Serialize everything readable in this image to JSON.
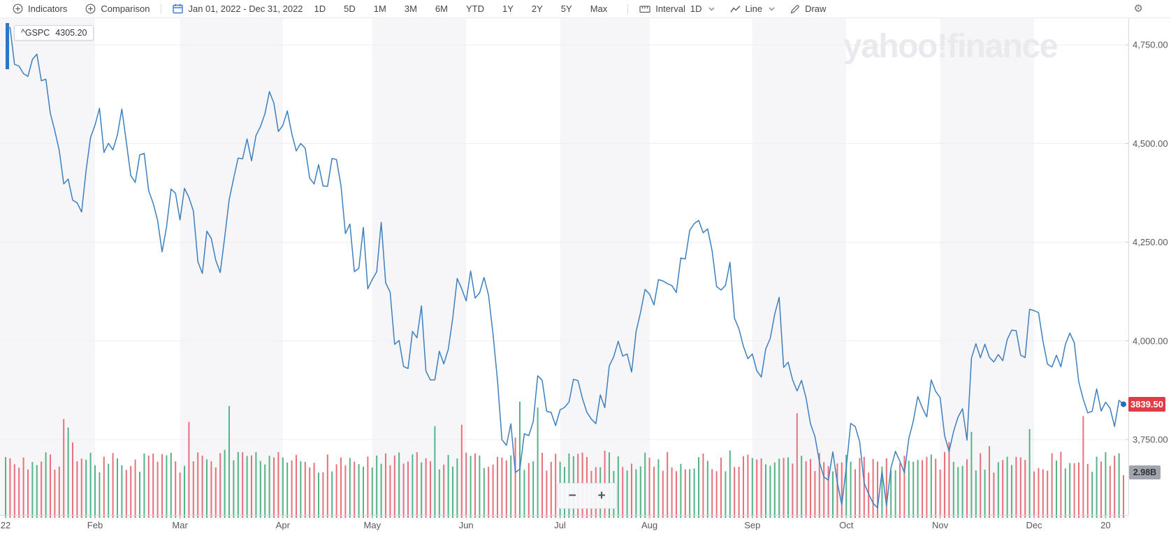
{
  "toolbar": {
    "indicators": "Indicators",
    "comparison": "Comparison",
    "date_range": "Jan 01, 2022 - Dec 31, 2022",
    "ranges": [
      "1D",
      "5D",
      "1M",
      "3M",
      "6M",
      "YTD",
      "1Y",
      "2Y",
      "5Y",
      "Max"
    ],
    "interval_label": "Interval",
    "interval_value": "1D",
    "chart_type_value": "Line",
    "draw_label": "Draw"
  },
  "legend_chip": {
    "symbol": "^GSPC",
    "value": "4305.20"
  },
  "watermark": "yahoo!finance",
  "badges": {
    "last_price": "3839.50",
    "volume": "2.98B"
  },
  "zoom_controls": {
    "out": "−",
    "in": "+"
  },
  "colors": {
    "line": "#3c80bf",
    "end_dot": "#1e6dc5",
    "price_badge_bg": "#e03c43",
    "volume_up": "#55b487",
    "volume_down": "#e8707b",
    "month_band": "#f6f6f8",
    "grid": "#ededf0",
    "axis_line": "#d7dadd",
    "tick": "#c6c9ce",
    "label": "#55585e",
    "watermark": "#e9eaed",
    "volume_badge_bg": "#a0a4ac",
    "start_marker": "#2a77c9"
  },
  "chart_data": {
    "type": "line",
    "title": "^GSPC daily close, Jan 01 2022 - Dec 31 2022",
    "x_unit": "trading-day index (0 = Jan 3 2022)",
    "y_ticks": [
      "4,750.00",
      "4,500.00",
      "4,250.00",
      "4,000.00",
      "3,750.00"
    ],
    "y_tick_values": [
      4750,
      4500,
      4250,
      4000,
      3750
    ],
    "ylim": [
      3560,
      4810
    ],
    "x_ticks": [
      {
        "label": "22",
        "d": 0
      },
      {
        "label": "Feb",
        "d": 20
      },
      {
        "label": "Mar",
        "d": 39
      },
      {
        "label": "Apr",
        "d": 62
      },
      {
        "label": "May",
        "d": 82
      },
      {
        "label": "Jun",
        "d": 103
      },
      {
        "label": "Jul",
        "d": 124
      },
      {
        "label": "Aug",
        "d": 144
      },
      {
        "label": "Sep",
        "d": 167
      },
      {
        "label": "Oct",
        "d": 188
      },
      {
        "label": "Nov",
        "d": 209
      },
      {
        "label": "Dec",
        "d": 230
      },
      {
        "label": "20",
        "d": 246
      }
    ],
    "month_start_days": [
      0,
      20,
      39,
      62,
      82,
      103,
      124,
      144,
      167,
      188,
      209,
      230,
      251
    ],
    "shaded_months_note": "alternating bands, Jan/Mar/May/Jul/Sep/Nov shaded",
    "grid": true,
    "last_close": 3839.5,
    "series": [
      {
        "name": "^GSPC close",
        "points": [
          [
            0,
            4796.6
          ],
          [
            1,
            4793.5
          ],
          [
            2,
            4700.6
          ],
          [
            3,
            4696.1
          ],
          [
            4,
            4677.0
          ],
          [
            5,
            4670.3
          ],
          [
            6,
            4713.1
          ],
          [
            7,
            4726.4
          ],
          [
            8,
            4659.0
          ],
          [
            9,
            4663.0
          ],
          [
            10,
            4577.1
          ],
          [
            11,
            4532.8
          ],
          [
            12,
            4482.7
          ],
          [
            13,
            4397.9
          ],
          [
            14,
            4410.1
          ],
          [
            15,
            4356.5
          ],
          [
            16,
            4349.9
          ],
          [
            17,
            4326.5
          ],
          [
            18,
            4431.9
          ],
          [
            19,
            4515.6
          ],
          [
            20,
            4546.5
          ],
          [
            21,
            4589.4
          ],
          [
            22,
            4477.4
          ],
          [
            23,
            4500.5
          ],
          [
            24,
            4483.9
          ],
          [
            25,
            4521.5
          ],
          [
            26,
            4587.2
          ],
          [
            27,
            4504.1
          ],
          [
            28,
            4418.6
          ],
          [
            29,
            4401.7
          ],
          [
            30,
            4471.1
          ],
          [
            31,
            4475.0
          ],
          [
            32,
            4380.3
          ],
          [
            33,
            4348.9
          ],
          [
            34,
            4304.8
          ],
          [
            35,
            4225.5
          ],
          [
            36,
            4288.7
          ],
          [
            37,
            4384.7
          ],
          [
            38,
            4373.9
          ],
          [
            39,
            4306.3
          ],
          [
            40,
            4386.5
          ],
          [
            41,
            4363.5
          ],
          [
            42,
            4328.9
          ],
          [
            43,
            4201.1
          ],
          [
            44,
            4170.7
          ],
          [
            45,
            4277.9
          ],
          [
            46,
            4259.5
          ],
          [
            47,
            4204.3
          ],
          [
            48,
            4173.1
          ],
          [
            49,
            4262.5
          ],
          [
            50,
            4357.9
          ],
          [
            51,
            4411.7
          ],
          [
            52,
            4463.1
          ],
          [
            53,
            4461.2
          ],
          [
            54,
            4511.6
          ],
          [
            55,
            4456.2
          ],
          [
            56,
            4520.2
          ],
          [
            57,
            4543.1
          ],
          [
            58,
            4575.5
          ],
          [
            59,
            4631.6
          ],
          [
            60,
            4602.5
          ],
          [
            61,
            4530.4
          ],
          [
            62,
            4545.9
          ],
          [
            63,
            4582.6
          ],
          [
            64,
            4525.1
          ],
          [
            65,
            4481.2
          ],
          [
            66,
            4500.2
          ],
          [
            67,
            4488.3
          ],
          [
            68,
            4412.5
          ],
          [
            69,
            4397.5
          ],
          [
            70,
            4446.6
          ],
          [
            71,
            4392.6
          ],
          [
            72,
            4391.7
          ],
          [
            73,
            4462.2
          ],
          [
            74,
            4459.5
          ],
          [
            75,
            4393.7
          ],
          [
            76,
            4271.8
          ],
          [
            77,
            4296.1
          ],
          [
            78,
            4175.2
          ],
          [
            79,
            4183.9
          ],
          [
            80,
            4287.5
          ],
          [
            81,
            4131.9
          ],
          [
            82,
            4155.4
          ],
          [
            83,
            4175.5
          ],
          [
            84,
            4300.2
          ],
          [
            85,
            4147.0
          ],
          [
            86,
            4123.3
          ],
          [
            87,
            3991.2
          ],
          [
            88,
            4001.0
          ],
          [
            89,
            3935.2
          ],
          [
            90,
            3930.1
          ],
          [
            91,
            4023.9
          ],
          [
            92,
            4008.0
          ],
          [
            93,
            4088.9
          ],
          [
            94,
            3923.7
          ],
          [
            95,
            3900.8
          ],
          [
            96,
            3901.4
          ],
          [
            97,
            3973.8
          ],
          [
            98,
            3941.5
          ],
          [
            99,
            3978.7
          ],
          [
            100,
            4057.8
          ],
          [
            101,
            4158.2
          ],
          [
            102,
            4132.2
          ],
          [
            103,
            4101.2
          ],
          [
            104,
            4176.8
          ],
          [
            105,
            4108.5
          ],
          [
            106,
            4121.4
          ],
          [
            107,
            4160.7
          ],
          [
            108,
            4115.8
          ],
          [
            109,
            4017.8
          ],
          [
            110,
            3900.9
          ],
          [
            111,
            3749.6
          ],
          [
            112,
            3735.5
          ],
          [
            113,
            3790.0
          ],
          [
            114,
            3666.8
          ],
          [
            115,
            3674.8
          ],
          [
            116,
            3764.8
          ],
          [
            117,
            3760.0
          ],
          [
            118,
            3795.7
          ],
          [
            119,
            3911.7
          ],
          [
            120,
            3900.1
          ],
          [
            121,
            3821.6
          ],
          [
            122,
            3818.8
          ],
          [
            123,
            3785.4
          ],
          [
            124,
            3825.3
          ],
          [
            125,
            3831.4
          ],
          [
            126,
            3845.1
          ],
          [
            127,
            3902.6
          ],
          [
            128,
            3899.4
          ],
          [
            129,
            3854.4
          ],
          [
            130,
            3818.8
          ],
          [
            131,
            3801.8
          ],
          [
            132,
            3790.4
          ],
          [
            133,
            3863.2
          ],
          [
            134,
            3830.8
          ],
          [
            135,
            3936.7
          ],
          [
            136,
            3959.9
          ],
          [
            137,
            3998.9
          ],
          [
            138,
            3961.6
          ],
          [
            139,
            3966.8
          ],
          [
            140,
            3921.1
          ],
          [
            141,
            4023.6
          ],
          [
            142,
            4072.4
          ],
          [
            143,
            4130.3
          ],
          [
            144,
            4118.6
          ],
          [
            145,
            4091.2
          ],
          [
            146,
            4155.2
          ],
          [
            147,
            4151.9
          ],
          [
            148,
            4145.2
          ],
          [
            149,
            4140.1
          ],
          [
            150,
            4122.5
          ],
          [
            151,
            4210.2
          ],
          [
            152,
            4207.3
          ],
          [
            153,
            4280.2
          ],
          [
            154,
            4297.1
          ],
          [
            155,
            4305.2
          ],
          [
            156,
            4274.0
          ],
          [
            157,
            4283.7
          ],
          [
            158,
            4228.5
          ],
          [
            159,
            4138.0
          ],
          [
            160,
            4128.7
          ],
          [
            161,
            4140.8
          ],
          [
            162,
            4199.1
          ],
          [
            163,
            4057.7
          ],
          [
            164,
            4030.6
          ],
          [
            165,
            3986.2
          ],
          [
            166,
            3955.0
          ],
          [
            167,
            3966.9
          ],
          [
            168,
            3924.3
          ],
          [
            169,
            3908.2
          ],
          [
            170,
            3979.9
          ],
          [
            171,
            4006.2
          ],
          [
            172,
            4067.4
          ],
          [
            173,
            4110.4
          ],
          [
            174,
            3932.7
          ],
          [
            175,
            3946.0
          ],
          [
            176,
            3901.4
          ],
          [
            177,
            3873.3
          ],
          [
            178,
            3899.9
          ],
          [
            179,
            3855.9
          ],
          [
            180,
            3789.9
          ],
          [
            181,
            3758.0
          ],
          [
            182,
            3693.2
          ],
          [
            183,
            3655.0
          ],
          [
            184,
            3647.3
          ],
          [
            185,
            3719.0
          ],
          [
            186,
            3640.5
          ],
          [
            187,
            3585.6
          ],
          [
            188,
            3678.4
          ],
          [
            189,
            3790.9
          ],
          [
            190,
            3783.3
          ],
          [
            191,
            3744.5
          ],
          [
            192,
            3639.7
          ],
          [
            193,
            3612.4
          ],
          [
            194,
            3588.8
          ],
          [
            195,
            3577.0
          ],
          [
            196,
            3669.9
          ],
          [
            197,
            3583.1
          ],
          [
            198,
            3678.0
          ],
          [
            199,
            3720.0
          ],
          [
            200,
            3695.2
          ],
          [
            201,
            3665.8
          ],
          [
            202,
            3752.8
          ],
          [
            203,
            3797.3
          ],
          [
            204,
            3859.1
          ],
          [
            205,
            3830.6
          ],
          [
            206,
            3807.3
          ],
          [
            207,
            3901.1
          ],
          [
            208,
            3872.0
          ],
          [
            209,
            3856.1
          ],
          [
            210,
            3759.7
          ],
          [
            211,
            3719.9
          ],
          [
            212,
            3770.6
          ],
          [
            213,
            3806.8
          ],
          [
            214,
            3828.1
          ],
          [
            215,
            3748.6
          ],
          [
            216,
            3956.4
          ],
          [
            217,
            3992.9
          ],
          [
            218,
            3957.3
          ],
          [
            219,
            3991.7
          ],
          [
            220,
            3958.8
          ],
          [
            221,
            3946.6
          ],
          [
            222,
            3965.3
          ],
          [
            223,
            3949.9
          ],
          [
            224,
            4003.6
          ],
          [
            225,
            4027.3
          ],
          [
            226,
            4026.1
          ],
          [
            227,
            3963.9
          ],
          [
            228,
            3957.6
          ],
          [
            229,
            4080.1
          ],
          [
            230,
            4076.6
          ],
          [
            231,
            4071.7
          ],
          [
            232,
            3998.8
          ],
          [
            233,
            3941.3
          ],
          [
            234,
            3933.9
          ],
          [
            235,
            3963.5
          ],
          [
            236,
            3934.4
          ],
          [
            237,
            3990.6
          ],
          [
            238,
            4019.7
          ],
          [
            239,
            3995.3
          ],
          [
            240,
            3895.8
          ],
          [
            241,
            3852.4
          ],
          [
            242,
            3817.7
          ],
          [
            243,
            3821.6
          ],
          [
            244,
            3878.4
          ],
          [
            245,
            3822.4
          ],
          [
            246,
            3844.8
          ],
          [
            247,
            3829.3
          ],
          [
            248,
            3783.2
          ],
          [
            249,
            3849.3
          ],
          [
            250,
            3839.5
          ]
        ]
      }
    ],
    "volume": {
      "last_label": "2.98B",
      "last_value_B": 2.98,
      "typical_range_B": [
        3.2,
        4.8
      ],
      "spikes_B": {
        "13": 6.9,
        "14": 6.3,
        "41": 6.7,
        "50": 7.8,
        "96": 6.4,
        "102": 6.5,
        "114": 5.6,
        "115": 8.1,
        "119": 7.7,
        "177": 7.3,
        "216": 6.0,
        "229": 6.2,
        "241": 7.1,
        "250": 2.98
      },
      "seed": 7,
      "color_rule": "green if close >= previous close else red"
    }
  }
}
